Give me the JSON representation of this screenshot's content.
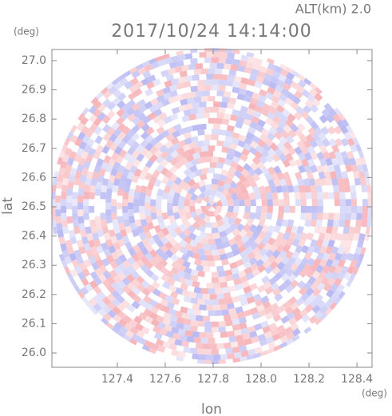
{
  "chart_data": {
    "type": "radar_ppi",
    "title": "2017/10/24 14:14:00",
    "altitude_label": "ALT(km) 2.0",
    "x_label": "lon",
    "y_label": "lat",
    "x_unit": "(deg)",
    "y_unit": "(deg)",
    "xlim": [
      127.127,
      128.463
    ],
    "ylim": [
      25.951,
      27.038
    ],
    "xticks": [
      127.4,
      127.6,
      127.8,
      {
        "value": 128,
        "label": "128.0"
      },
      128.2,
      128.4
    ],
    "yticks": [
      {
        "value": 26,
        "label": "26.0"
      },
      26.1,
      26.2,
      26.3,
      26.4,
      26.5,
      26.6,
      26.7,
      26.8,
      26.9,
      {
        "value": 27,
        "label": "27.0"
      }
    ],
    "positive_color": "#f4a0a6",
    "negative_color": "#a8a8f0"
  }
}
